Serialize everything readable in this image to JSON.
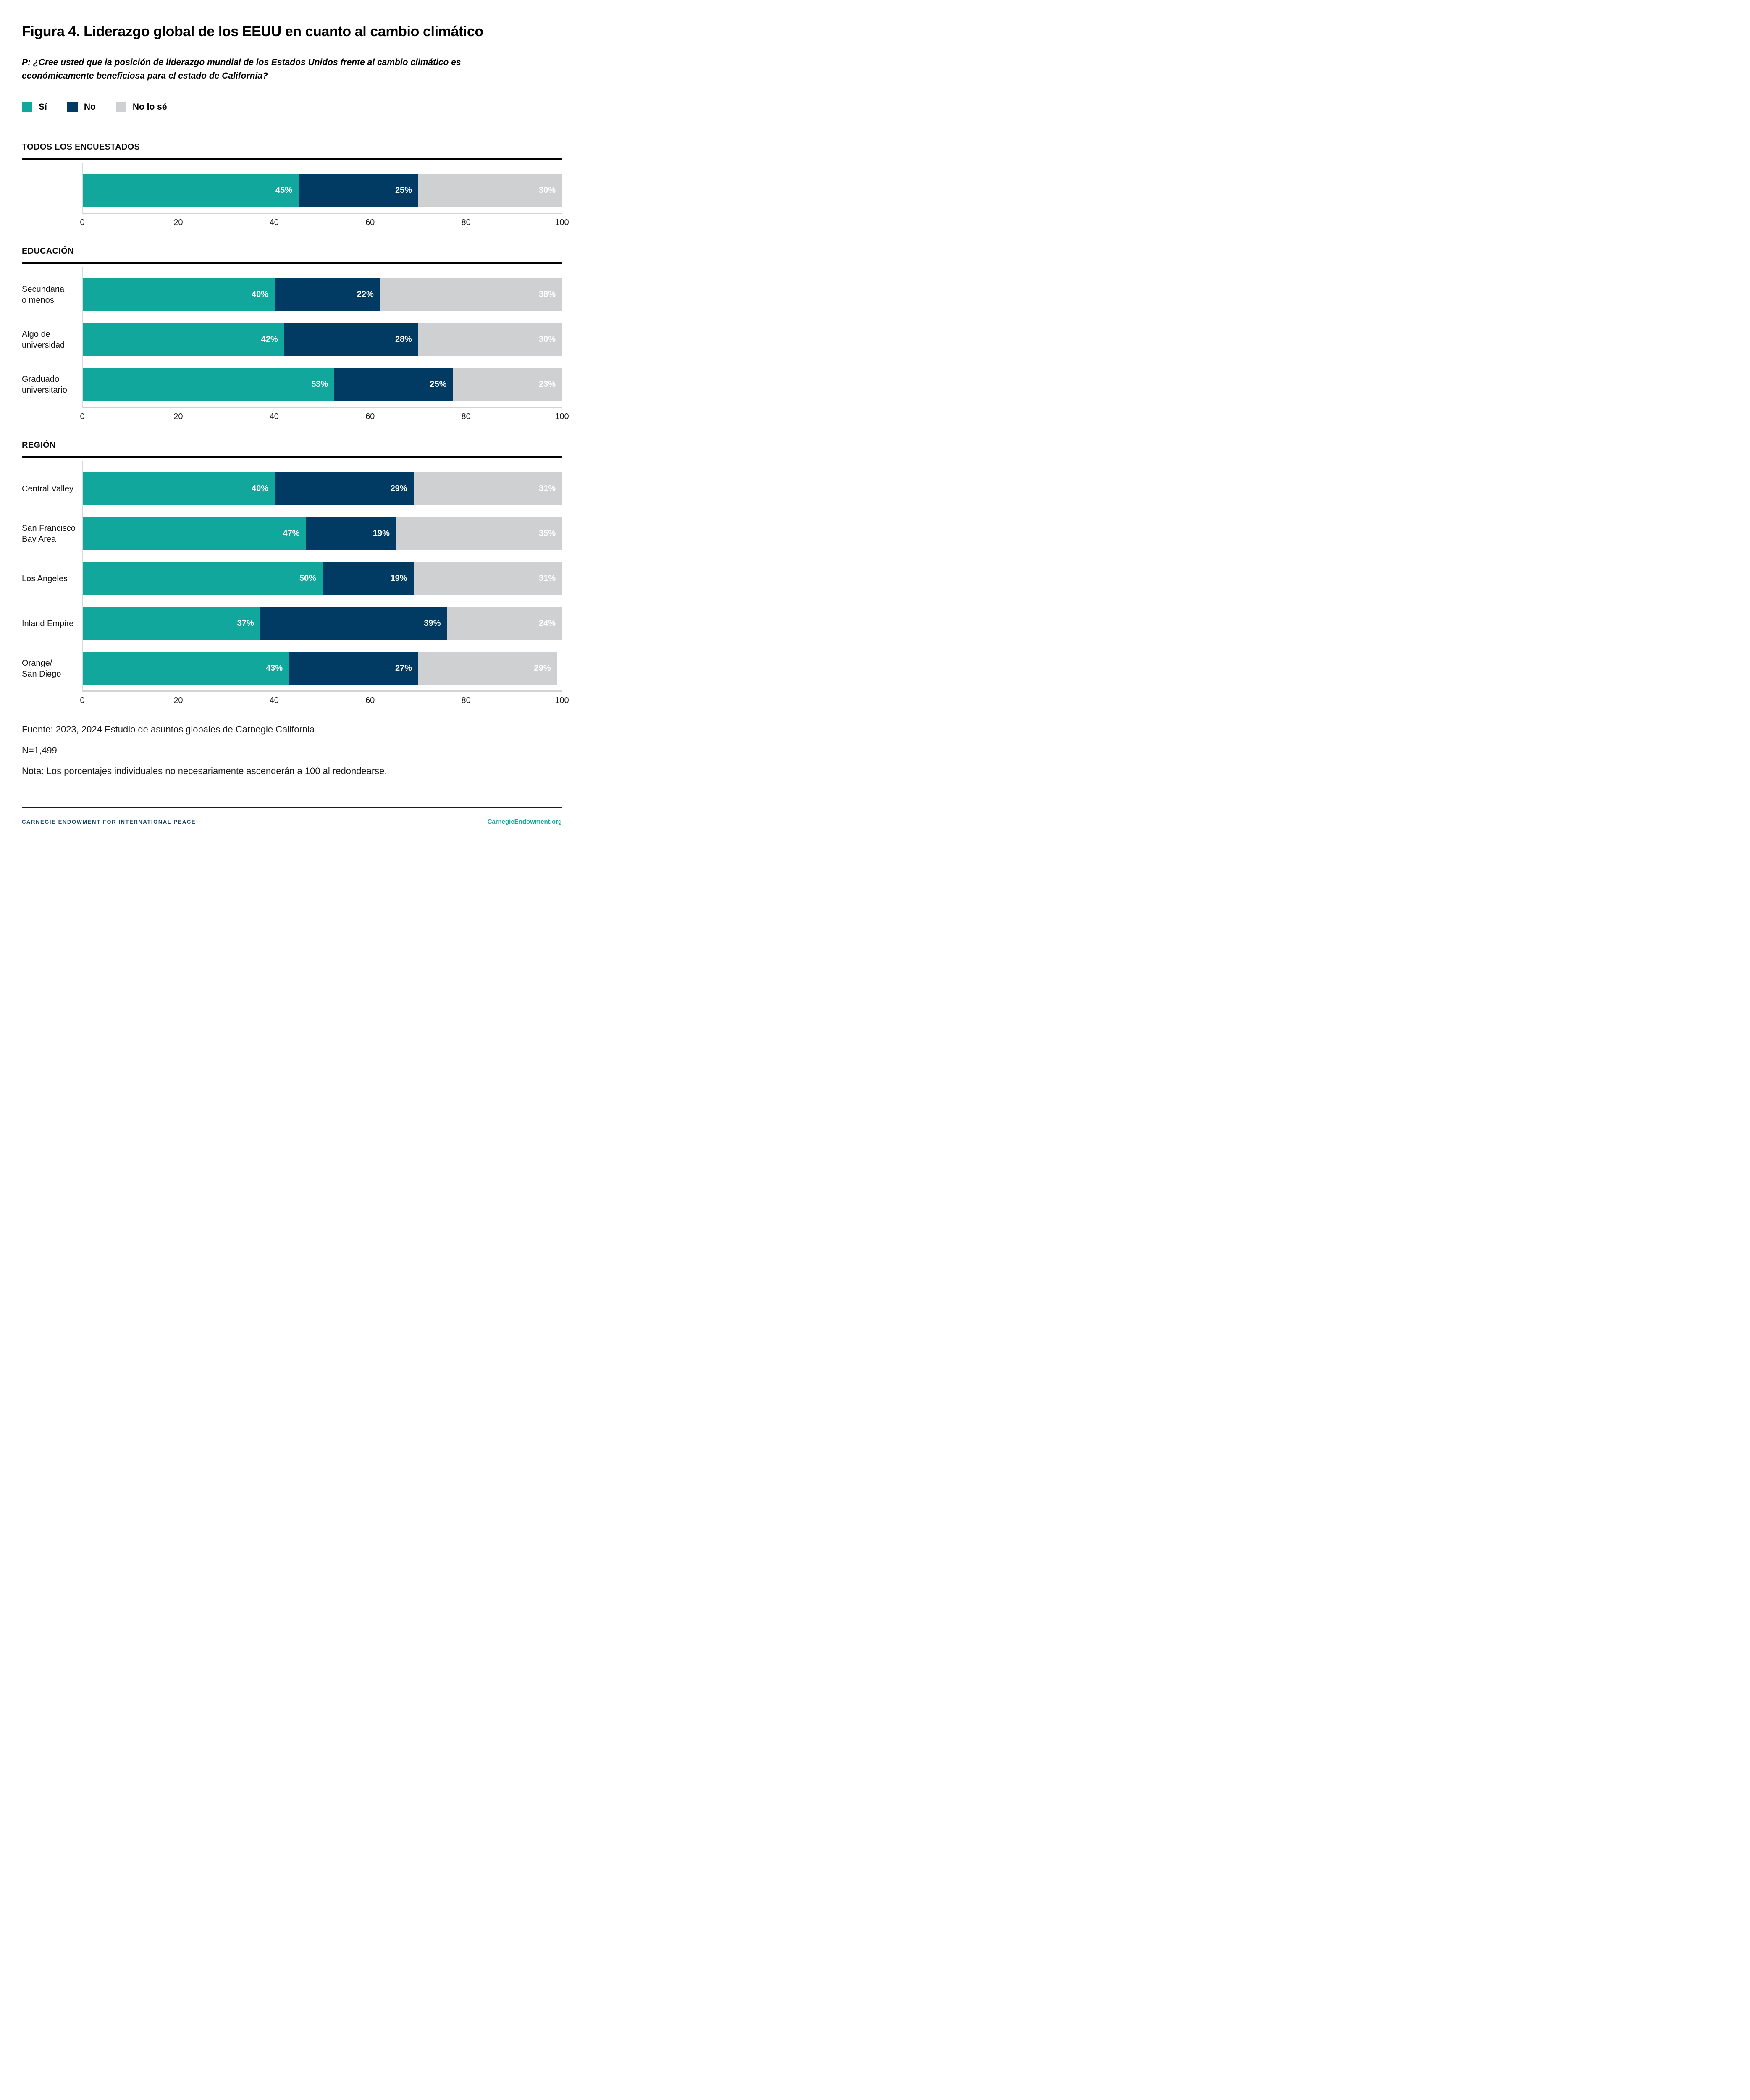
{
  "title": "Figura 4. Liderazgo global de los EEUU en cuanto al cambio climático",
  "subtitle": "P: ¿Cree usted que la posición de liderazgo mundial de los Estados Unidos frente al cambio climático es económicamente beneficiosa para el estado de California?",
  "legend": {
    "items": [
      {
        "label": "Sí",
        "color": "#12A79D"
      },
      {
        "label": "No",
        "color": "#013A63"
      },
      {
        "label": "No lo sé",
        "color": "#CFD0D2"
      }
    ]
  },
  "colors": {
    "series": [
      "#12A79D",
      "#013A63",
      "#CFD0D2"
    ],
    "axis_line": "#D2D3D5",
    "section_rule": "#000000",
    "footer_navy": "#15496B",
    "footer_teal": "#0EA79C"
  },
  "axis": {
    "min": 0,
    "max": 100,
    "ticks": [
      0,
      20,
      40,
      60,
      80,
      100
    ]
  },
  "chart_data": [
    {
      "type": "bar",
      "stacked": true,
      "orientation": "horizontal",
      "section_title": "TODOS LOS ENCUESTADOS",
      "series_names": [
        "Sí",
        "No",
        "No lo sé"
      ],
      "xlim": [
        0,
        100
      ],
      "rows": [
        {
          "label": "",
          "values": [
            45,
            25,
            30
          ]
        }
      ]
    },
    {
      "type": "bar",
      "stacked": true,
      "orientation": "horizontal",
      "section_title": "EDUCACIÓN",
      "series_names": [
        "Sí",
        "No",
        "No lo sé"
      ],
      "xlim": [
        0,
        100
      ],
      "rows": [
        {
          "label": "Secundaria\no menos",
          "values": [
            40,
            22,
            38
          ]
        },
        {
          "label": "Algo de\nuniversidad",
          "values": [
            42,
            28,
            30
          ]
        },
        {
          "label": "Graduado\nuniversitario",
          "values": [
            53,
            25,
            23
          ]
        }
      ]
    },
    {
      "type": "bar",
      "stacked": true,
      "orientation": "horizontal",
      "section_title": "REGIÓN",
      "series_names": [
        "Sí",
        "No",
        "No lo sé"
      ],
      "xlim": [
        0,
        100
      ],
      "rows": [
        {
          "label": "Central Valley",
          "values": [
            40,
            29,
            31
          ]
        },
        {
          "label": "San Francisco\nBay Area",
          "values": [
            47,
            19,
            35
          ]
        },
        {
          "label": "Los Angeles",
          "values": [
            50,
            19,
            31
          ]
        },
        {
          "label": "Inland Empire",
          "values": [
            37,
            39,
            24
          ]
        },
        {
          "label": "Orange/\nSan Diego",
          "values": [
            43,
            27,
            29
          ]
        }
      ]
    }
  ],
  "footnotes": {
    "fuente": "Fuente: 2023, 2024 Estudio de asuntos globales de Carnegie California",
    "n": "N=1,499",
    "nota": "Nota: Los porcentajes individuales no necesariamente ascenderán a 100 al redondearse."
  },
  "footer": {
    "org": "CARNEGIE ENDOWMENT FOR INTERNATIONAL PEACE",
    "site": "CarnegieEndowment.org"
  }
}
